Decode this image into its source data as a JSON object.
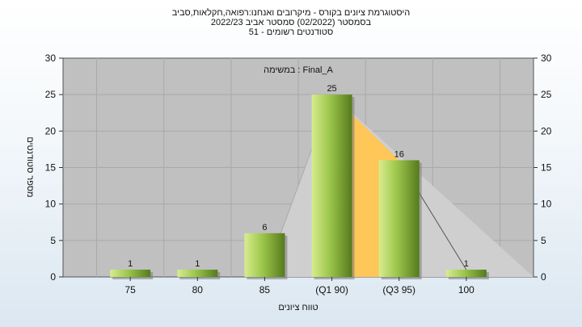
{
  "colors": {
    "plot_background": "#c0c0c0",
    "grid": "#a9a9a9",
    "bar_light": "#d8ec8f",
    "bar_mid": "#9bc64a",
    "bar_dark": "#557a1d",
    "triangle_gray": "#cfcfcf",
    "triangle_orange": "#ffc658"
  },
  "chart_data": {
    "type": "bar",
    "title_lines": [
      "היסטוגרמת ציונים בקורס - מיקרובים ואנחנו:רפואה,חקלאות,סביב",
      "בסמסטר  (02/2022)  סמסטר אביב 2022/23",
      "סטודנטים רשומים - 51"
    ],
    "annotation": "במשימה : Final_A",
    "categories": [
      "75",
      "80",
      "85",
      "(Q1 90)",
      "(Q3 95)",
      "100"
    ],
    "values": [
      1,
      1,
      6,
      25,
      16,
      1
    ],
    "data_labels": [
      "1",
      "1",
      "6",
      "25",
      "16",
      "1"
    ],
    "xlabel": "טווח ציונים",
    "ylabel": "מספר סטודנטים",
    "ylim": [
      0,
      30
    ],
    "yticks": [
      0,
      5,
      10,
      15,
      20,
      25,
      30
    ],
    "secondary_y_axis": true,
    "grid": true,
    "legend": "none"
  }
}
